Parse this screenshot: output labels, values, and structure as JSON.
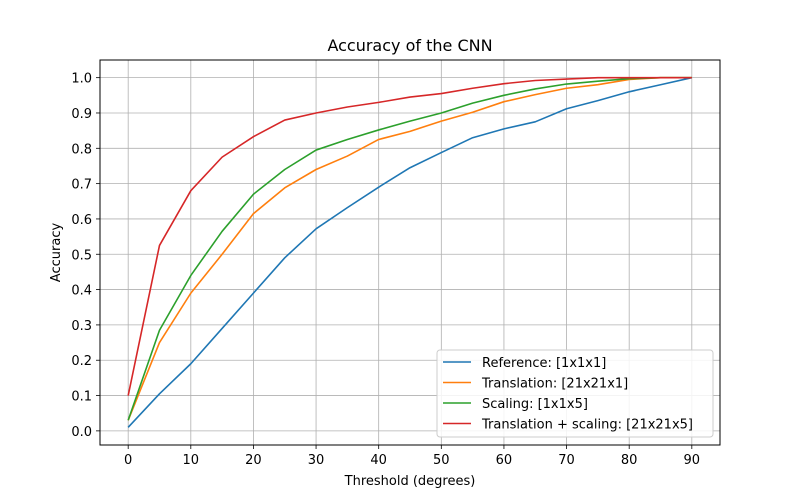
{
  "chart_data": {
    "type": "line",
    "title": "Accuracy of the CNN",
    "xlabel": "Threshold (degrees)",
    "ylabel": "Accuracy",
    "xlim": [
      -4.5,
      94.5
    ],
    "ylim": [
      -0.04,
      1.05
    ],
    "xticks": [
      0,
      10,
      20,
      30,
      40,
      50,
      60,
      70,
      80,
      90
    ],
    "yticks": [
      0.0,
      0.1,
      0.2,
      0.3,
      0.4,
      0.5,
      0.6,
      0.7,
      0.8,
      0.9,
      1.0
    ],
    "grid": true,
    "legend_position": "lower-right",
    "x": [
      0,
      5,
      10,
      15,
      20,
      25,
      30,
      35,
      40,
      45,
      50,
      55,
      60,
      65,
      70,
      75,
      80,
      85,
      90
    ],
    "series": [
      {
        "name": "Reference: [1x1x1]",
        "color": "#1f77b4",
        "values": [
          0.01,
          0.105,
          0.19,
          0.29,
          0.39,
          0.49,
          0.572,
          0.632,
          0.69,
          0.745,
          0.788,
          0.83,
          0.855,
          0.875,
          0.912,
          0.935,
          0.96,
          0.98,
          1.0
        ]
      },
      {
        "name": "Translation: [21x21x1]",
        "color": "#ff7f0e",
        "values": [
          0.03,
          0.25,
          0.39,
          0.5,
          0.615,
          0.688,
          0.74,
          0.778,
          0.825,
          0.848,
          0.877,
          0.902,
          0.932,
          0.952,
          0.97,
          0.98,
          0.995,
          1.0,
          1.0
        ]
      },
      {
        "name": "Scaling: [1x1x5]",
        "color": "#2ca02c",
        "values": [
          0.03,
          0.285,
          0.44,
          0.565,
          0.67,
          0.74,
          0.795,
          0.825,
          0.852,
          0.877,
          0.9,
          0.928,
          0.95,
          0.968,
          0.982,
          0.99,
          0.997,
          1.0,
          1.0
        ]
      },
      {
        "name": "Translation + scaling: [21x21x5]",
        "color": "#d62728",
        "values": [
          0.1,
          0.525,
          0.68,
          0.775,
          0.833,
          0.88,
          0.9,
          0.917,
          0.93,
          0.945,
          0.955,
          0.97,
          0.983,
          0.992,
          0.996,
          1.0,
          1.0,
          1.0,
          1.0
        ]
      }
    ]
  }
}
